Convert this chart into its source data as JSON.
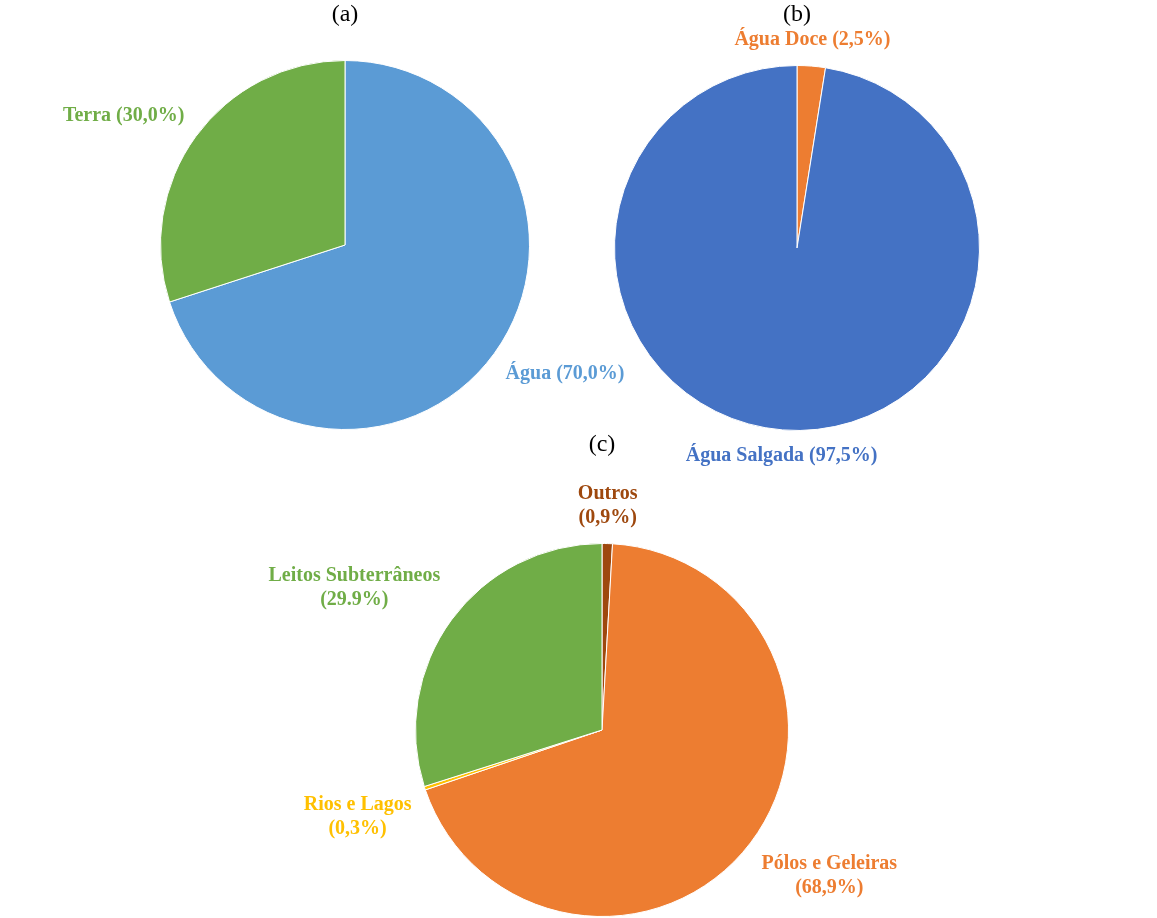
{
  "chart_data": [
    {
      "type": "pie",
      "title": "(a)",
      "categories": [
        "Água",
        "Terra"
      ],
      "values": [
        70.0,
        30.0
      ],
      "colors": [
        "#5b9bd5",
        "#70ad47"
      ],
      "value_labels": [
        "(70,0%)",
        "(30,0%)"
      ]
    },
    {
      "type": "pie",
      "title": "(b)",
      "categories": [
        "Água Doce",
        "Água Salgada"
      ],
      "values": [
        2.5,
        97.5
      ],
      "colors": [
        "#ed7d31",
        "#4472c4"
      ],
      "value_labels": [
        "(2,5%)",
        "(97,5%)"
      ]
    },
    {
      "type": "pie",
      "title": "(c)",
      "categories": [
        "Outros",
        "Pólos e Geleiras",
        "Rios e Lagos",
        "Leitos Subterrâneos"
      ],
      "values": [
        0.9,
        68.9,
        0.3,
        29.9
      ],
      "colors": [
        "#9e480e",
        "#ed7d31",
        "#ffc000",
        "#70ad47"
      ],
      "value_labels": [
        "(0,9%)",
        "(68,9%)",
        "(0,3%)",
        "(29.9%)"
      ]
    }
  ]
}
